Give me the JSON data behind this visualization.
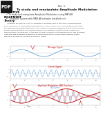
{
  "title_line1": "Experiment No. 1",
  "title_line2": "To study and manipulate Amplitude Modulation",
  "objective_header": "OBJECTIVE",
  "objective_bullet": "To study and manipulate Amplitude Modulation using MATLAB",
  "equipment_header": "EQUIPMENT",
  "equipment_bullet": "Computer System with MATLAB software Installed on it",
  "theory_header": "Theory",
  "theory_lines": [
    "     Amplitude modulation (AM) is a modulation technique used in electronic communications,",
    "most commonly for transmitting information via a radio carrier wave. In amplitude modulation,",
    "the amplitude (signal strength) of the carrier wave is varied in proportion to that of the message",
    "signal being transmitted. The message signal is, for example, a function of the sound to be",
    "reproduced by a loudspeaker, or the light intensity of pixels of a television screen. This technique",
    "contrasts with frequency modulation, in which the frequency of the carrier signal is varied,",
    "and phase modulation, in which its phase is varied."
  ],
  "bg_color": "#ffffff",
  "pdf_bg": "#1a1a1a",
  "pdf_text": "#ffffff",
  "signal_color": "#5b9bd5",
  "carrier_color": "#5b9bd5",
  "am_envelope_color": "#c00000",
  "am_carrier_color": "#5b9bd5",
  "am_fill_color": "#e06060",
  "plot1_label": "Message Signal",
  "plot2_label": "Carrier Signal",
  "plot3_label_env": "Amplitude Modulation (AM) Envelope",
  "plot3_label_car": "AM Carrier"
}
